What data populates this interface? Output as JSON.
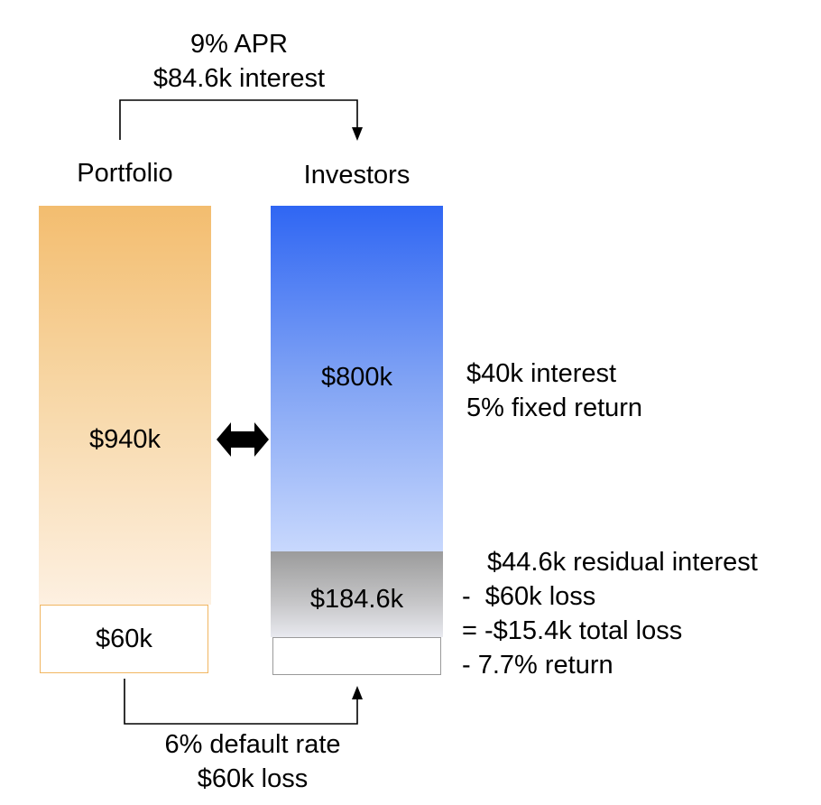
{
  "top_flow": {
    "line1": "9% APR",
    "line2": "$84.6k interest"
  },
  "portfolio": {
    "title": "Portfolio",
    "value": "$940k",
    "loss_value": "$60k",
    "color_top": "#f3bd6f",
    "color_bottom": "#fdf0e1"
  },
  "investors": {
    "title": "Investors",
    "senior_value": "$800k",
    "residual_value": "$184.6k",
    "senior_color_top": "#2f66f3",
    "senior_color_bottom": "#c8d8fd",
    "residual_color_top": "#9b9b9b"
  },
  "senior_note": {
    "line1": "$40k interest",
    "line2": "5% fixed return"
  },
  "residual_note": {
    "line1": "$44.6k residual interest",
    "line2": "-  $60k loss",
    "line3": "= -$15.4k total loss",
    "line4": "- 7.7% return"
  },
  "bottom_flow": {
    "line1": "6% default rate",
    "line2": "$60k loss"
  },
  "icons": {
    "exchange": "double-headed-arrow-icon"
  }
}
